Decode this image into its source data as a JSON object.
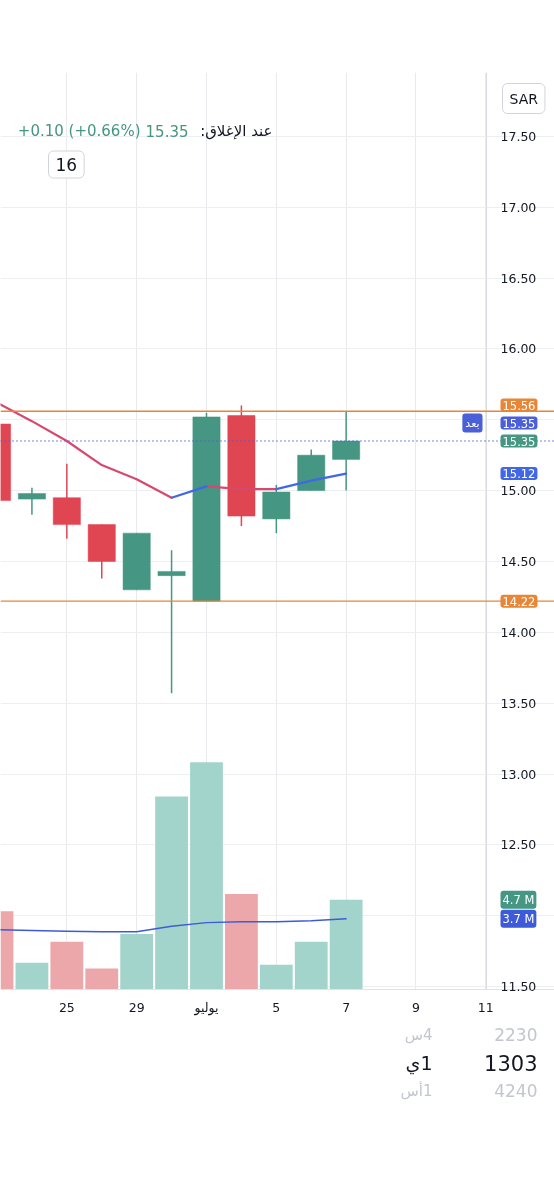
{
  "chart_data": {
    "type": "candlestick",
    "categories": [
      null,
      null,
      "25",
      null,
      "29",
      null,
      "يوليو",
      null,
      "5",
      null,
      "7",
      null,
      "9",
      null,
      "11"
    ],
    "ohlc": [
      [
        15.47,
        15.47,
        14.93,
        14.93
      ],
      [
        14.94,
        15.02,
        14.83,
        14.98
      ],
      [
        14.95,
        15.19,
        14.66,
        14.76
      ],
      [
        14.76,
        14.76,
        14.38,
        14.5
      ],
      [
        14.3,
        14.7,
        14.3,
        14.7
      ],
      [
        14.4,
        14.58,
        13.57,
        14.43
      ],
      [
        14.22,
        15.55,
        14.22,
        15.52
      ],
      [
        15.53,
        15.6,
        14.75,
        14.82
      ],
      [
        14.8,
        15.04,
        14.7,
        14.99
      ],
      [
        15.0,
        15.29,
        15.0,
        15.25
      ],
      [
        15.22,
        15.56,
        15.0,
        15.35
      ],
      null,
      null,
      null,
      null
    ],
    "colors": [
      "#e04552",
      "#459682",
      "#e04552",
      "#e04552",
      "#459682",
      "#459682",
      "#459682",
      "#e04552",
      "#459682",
      "#459682",
      "#459682",
      null,
      null,
      null,
      null
    ],
    "series": [
      {
        "type": "bar",
        "axis": "y2",
        "colors": [
          "#eba7a9",
          "#a3d4cc",
          "#eba7a9",
          "#eba7a9",
          "#a3d4cc",
          "#a3d4cc",
          "#a3d4cc",
          "#eba7a9",
          "#a3d4cc",
          "#a3d4cc",
          "#a3d4cc",
          null,
          null,
          null,
          null
        ],
        "values": [
          4.1,
          1.4,
          2.5,
          1.1,
          2.9,
          10.1,
          11.9,
          5.0,
          1.3,
          2.5,
          4.7,
          null,
          null,
          null,
          null
        ]
      },
      {
        "type": "line",
        "axis": "y2",
        "color": "#3d5bd9",
        "values": [
          3.13,
          3.09,
          3.05,
          3.02,
          3.02,
          3.31,
          3.5,
          3.55,
          3.55,
          3.6,
          3.7,
          null,
          null,
          null,
          null
        ]
      },
      {
        "type": "line",
        "color": "#d6486e",
        "values": [
          15.62,
          15.49,
          15.35,
          15.18,
          15.08,
          14.95,
          null,
          null,
          null,
          null,
          null,
          null,
          null,
          null,
          null
        ]
      },
      {
        "type": "line",
        "color": "#d6486e",
        "values": [
          null,
          null,
          null,
          null,
          null,
          null,
          15.03,
          15.01,
          15.01,
          null,
          null,
          null,
          null,
          null,
          null
        ]
      },
      {
        "type": "line",
        "color": "#4267e6",
        "values": [
          null,
          null,
          null,
          null,
          null,
          14.95,
          15.03,
          null,
          15.01,
          15.07,
          15.12,
          null,
          null,
          null,
          null
        ]
      }
    ],
    "ylim": [
      11.48,
      17.95
    ],
    "yticks": [
      {
        "value": 11.5,
        "label": "11.50"
      },
      {
        "value": 12,
        "label": null
      },
      {
        "value": 12.5,
        "label": "12.50"
      },
      {
        "value": 13,
        "label": "13.00"
      },
      {
        "value": 13.5,
        "label": "13.50"
      },
      {
        "value": 14,
        "label": "14.00"
      },
      {
        "value": 14.5,
        "label": "14.50"
      },
      {
        "value": 15,
        "label": "15.00"
      },
      {
        "value": 15.5,
        "label": null
      },
      {
        "value": 16,
        "label": "16.00"
      },
      {
        "value": 16.5,
        "label": "16.50"
      },
      {
        "value": 17,
        "label": "17.00"
      },
      {
        "value": 17.5,
        "label": "17.50"
      }
    ],
    "y2lim": [
      0,
      48
    ],
    "y2ticks": [
      {
        "value": 4.7,
        "label": "4.7 M"
      },
      {
        "value": 3.7,
        "label": "3.7 M"
      }
    ],
    "ref_lines": [
      {
        "axis": "y",
        "value": 15.56,
        "label": "15.56",
        "color": "#e88637"
      },
      {
        "axis": "y",
        "value": 14.22,
        "label": "14.22",
        "color": "#e88637"
      },
      {
        "axis": "y",
        "value": 15.35,
        "label": "15.35",
        "color": "#4a5fd8",
        "line_style": "dotted"
      }
    ],
    "grid": true,
    "annotations": [
      "عند الإغلاق:",
      "15.35",
      "+0.10 (+0.66%)",
      "SAR",
      "16",
      "بعد",
      "1303",
      "1ي",
      "2230",
      "4س",
      "4240",
      "1أس",
      {
        "text": "15.35",
        "y": 15.35
      },
      {
        "text": "15.12",
        "y": 15.12
      }
    ]
  }
}
